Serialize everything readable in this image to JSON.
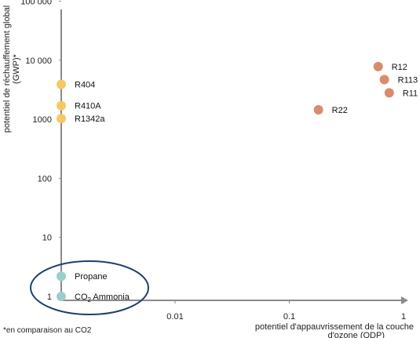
{
  "chart_data": {
    "type": "scatter",
    "title": "",
    "xlabel": "potentiel d'appauvrissement de la couche d'ozone (ODP)",
    "ylabel": "potentiel de réchauffement global (GWP)*",
    "xscale": "log",
    "yscale": "log",
    "xlim": [
      0.0008,
      1.1
    ],
    "ylim": [
      1,
      100000
    ],
    "x_ticks": [
      0.01,
      0.1,
      1
    ],
    "x_tick_labels": [
      "0.01",
      "0.1",
      "1"
    ],
    "y_ticks": [
      1,
      10,
      100,
      1000,
      10000,
      100000
    ],
    "y_tick_labels": [
      "1",
      "10",
      "100",
      "1000",
      "10 000",
      "100 000"
    ],
    "grid": false,
    "legend": "none",
    "footnote": "*en comparaison au CO2",
    "highlight_ellipse_around": [
      "Propane",
      "CO2 Ammonia"
    ],
    "colors": {
      "zero_odp": "#f5c862",
      "ozone_depleting": "#d88c6c",
      "natural": "#98cfcb",
      "ellipse": "#1f3d73",
      "axis": "#8a8a8a"
    },
    "points": [
      {
        "label": "R404",
        "x": 0,
        "y": 3900,
        "group": "zero_odp"
      },
      {
        "label": "R410A",
        "x": 0,
        "y": 1700,
        "group": "zero_odp"
      },
      {
        "label": "R1342a",
        "x": 0,
        "y": 1030,
        "group": "zero_odp"
      },
      {
        "label": "R12",
        "x": 0.6,
        "y": 7800,
        "group": "ozone_depleting"
      },
      {
        "label": "R113",
        "x": 0.68,
        "y": 4700,
        "group": "ozone_depleting"
      },
      {
        "label": "R11",
        "x": 0.75,
        "y": 2800,
        "group": "ozone_depleting"
      },
      {
        "label": "R22",
        "x": 0.18,
        "y": 1450,
        "group": "ozone_depleting"
      },
      {
        "label": "Propane",
        "x": 0,
        "y": 2.2,
        "group": "natural"
      },
      {
        "label": "CO2 Ammonia",
        "x": 0,
        "y": 1,
        "group": "natural"
      }
    ]
  }
}
